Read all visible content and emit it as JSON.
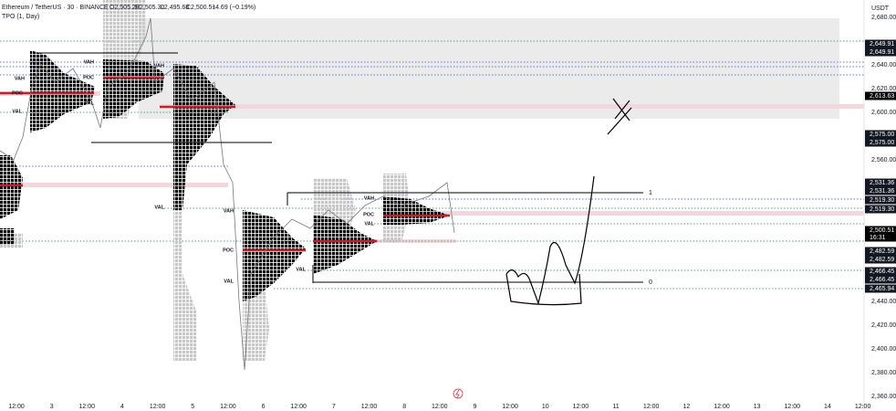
{
  "header": {
    "symbol": "Ethereum / TetherUS · 30 · BINANCE",
    "ohlc": [
      "O2,505.20",
      "H2,505.30",
      "L2,495.68",
      "C2,500.51",
      "−4.69 (−0.19%)"
    ],
    "indicator": "TPO (1, Day)"
  },
  "price_axis": {
    "currency": "USDT",
    "ticks": [
      "2,680.00",
      "2,640.00",
      "2,620.00",
      "2,600.00",
      "2,560.00",
      "2,440.00",
      "2,420.00",
      "2,400.00",
      "2,380.00",
      "2,360.00"
    ]
  },
  "price_tags": [
    "2,649.91",
    "2,649.91",
    "2,613.63",
    "2,575.00",
    "2,575.00",
    "2,531.36",
    "2,531.36",
    "2,519.30",
    "2,519.30",
    "2,500.51",
    "16:31",
    "2,482.59",
    "2,482.59",
    "2,466.45",
    "2,466.45",
    "2,465.94"
  ],
  "time_axis": [
    "12:00",
    "3",
    "12:00",
    "4",
    "12:00",
    "5",
    "12:00",
    "6",
    "12:00",
    "7",
    "12:00",
    "8",
    "12:00",
    "9",
    "12:00",
    "10",
    "12:00",
    "11",
    "12:00",
    "12",
    "12:00",
    "13",
    "12:00",
    "14",
    "12:00"
  ],
  "tpo_labels": [
    "VAH",
    "POC",
    "VAL",
    "VAH",
    "POC",
    "VAL",
    "VAH",
    "VAL",
    "VAH",
    "POC",
    "VAL",
    "VAL",
    "VAH",
    "POC",
    "VAL"
  ],
  "level_labels": [
    "1",
    "0"
  ]
}
